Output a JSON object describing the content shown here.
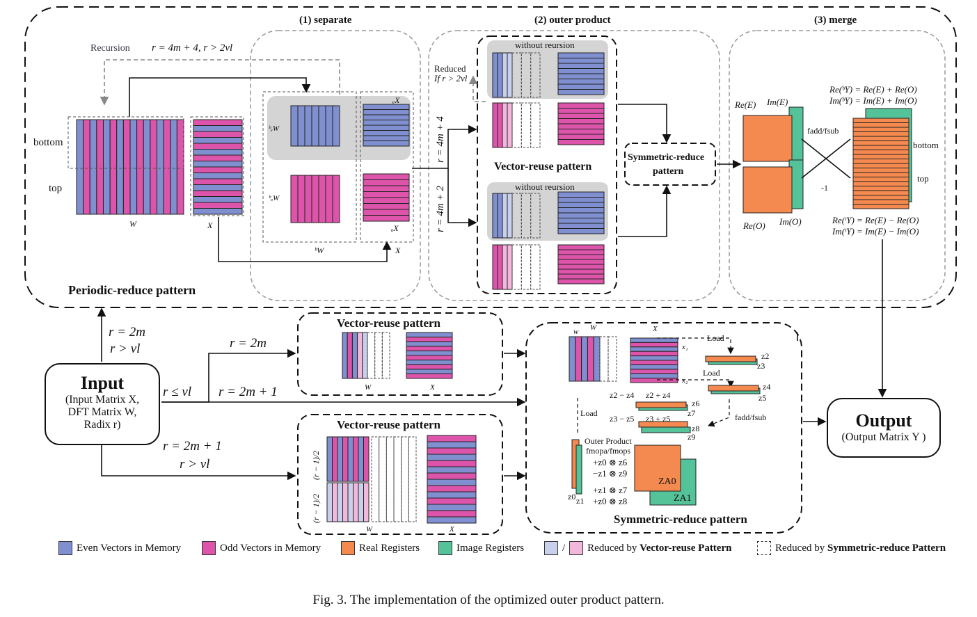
{
  "colors": {
    "even": "#7f8fcf",
    "odd": "#dd55aa",
    "real": "#f58a50",
    "image": "#55c39a",
    "even_light": "#c9d0ec",
    "odd_light": "#f2b8dc",
    "gray_panel": "#d4d4d4"
  },
  "top": {
    "stage1": "(1) separate",
    "stage2": "(2) outer product",
    "stage3": "(3) merge",
    "periodic": "Periodic-reduce pattern",
    "recursion": "Recursion",
    "recursion_cond": "r = 4m + 4, r > 2vl",
    "bottom": "bottom",
    "top": "top",
    "W": "W",
    "X": "X",
    "bW": "ᵇW",
    "beW": "ᵇₑW",
    "boW": "ᵇₒW",
    "eX": "ₑX",
    "oX": "ₒX",
    "X2": "X",
    "reduced1": "Reduced",
    "reduced2": "If r > 2vl",
    "without1": "without reursion",
    "without2": "without reursion",
    "r4m4": "r = 4m + 4",
    "r4m2": "r = 4m + 2",
    "vr": "Vector-reuse pattern",
    "sr1": "Symmetric-reduce",
    "sr2": "pattern",
    "reE": "Re(E)",
    "imE": "Im(E)",
    "reO": "Re(O)",
    "imO": "Im(O)",
    "fadd": "fadd/fsub",
    "minus1": "-1",
    "mbottom": "bottom",
    "mtop": "top",
    "eq1": "Re(ᵇY) = Re(E) + Re(O)",
    "eq2": "Im(ᵇY) = Im(E) + Im(O)",
    "eq3": "Re(ᵗY) = Re(E) − Re(O)",
    "eq4": "Im(ᵗY) = Im(E) − Im(O)"
  },
  "input": {
    "title": "Input",
    "l1": "(Input Matrix X,",
    "l2": "DFT Matrix W,",
    "l3": "Radix r)"
  },
  "output": {
    "title": "Output",
    "l1": "(Output Matrix Y )"
  },
  "edges": {
    "r2m_a": "r = 2m",
    "r_gt_vl_a": "r > vl",
    "r_le_vl": "r ≤ vl",
    "r2m_b": "r = 2m",
    "r2m1_a": "r = 2m + 1",
    "r2m1_b": "r = 2m + 1",
    "r_gt_vl_b": "r > vl"
  },
  "vr_mid": {
    "title": "Vector-reuse pattern",
    "W": "W",
    "X": "X"
  },
  "vr_low": {
    "title": "Vector-reuse pattern",
    "W": "W",
    "X": "X",
    "half1": "(r − 1)/2",
    "half2": "(r − 1)/2"
  },
  "srp": {
    "title": "Symmetric-reduce pattern",
    "w": "w",
    "W": "W",
    "X": "X",
    "x1": "x₁",
    "x2": "x₂",
    "load1": "Load",
    "load2": "Load",
    "load3": "Load",
    "z2": "z2",
    "z3": "z3",
    "z4": "z4",
    "z5": "z5",
    "z6": "z6",
    "z7": "z7",
    "z8": "z8",
    "z9": "z9",
    "z2mz4": "z2 − z4",
    "z2pz4": "z2 + z4",
    "z3mz5": "z3 − z5",
    "z3pz5": "z3 + z5",
    "faddfsub": "fadd/fsub",
    "op1": "Outer Product",
    "op2": "fmopa/fmops",
    "t1": "+z0 ⊗ z6",
    "t2": "−z1 ⊗ z9",
    "t3": "+z1 ⊗ z7",
    "t4": "+z0 ⊗ z8",
    "za0": "ZA0",
    "za1": "ZA1",
    "z0": "z0",
    "z1": "z1"
  },
  "legend": {
    "even": "Even Vectors in Memory",
    "odd": "Odd Vectors in Memory",
    "real": "Real Registers",
    "image": "Image Registers",
    "slash": "/",
    "reduced_vr_prefix": "Reduced by ",
    "reduced_vr_bold": "Vector-reuse Pattern",
    "reduced_sr_prefix": "Reduced by ",
    "reduced_sr_bold": "Symmetric-reduce Pattern"
  },
  "caption": "Fig. 3.  The implementation of the optimized outer product pattern."
}
